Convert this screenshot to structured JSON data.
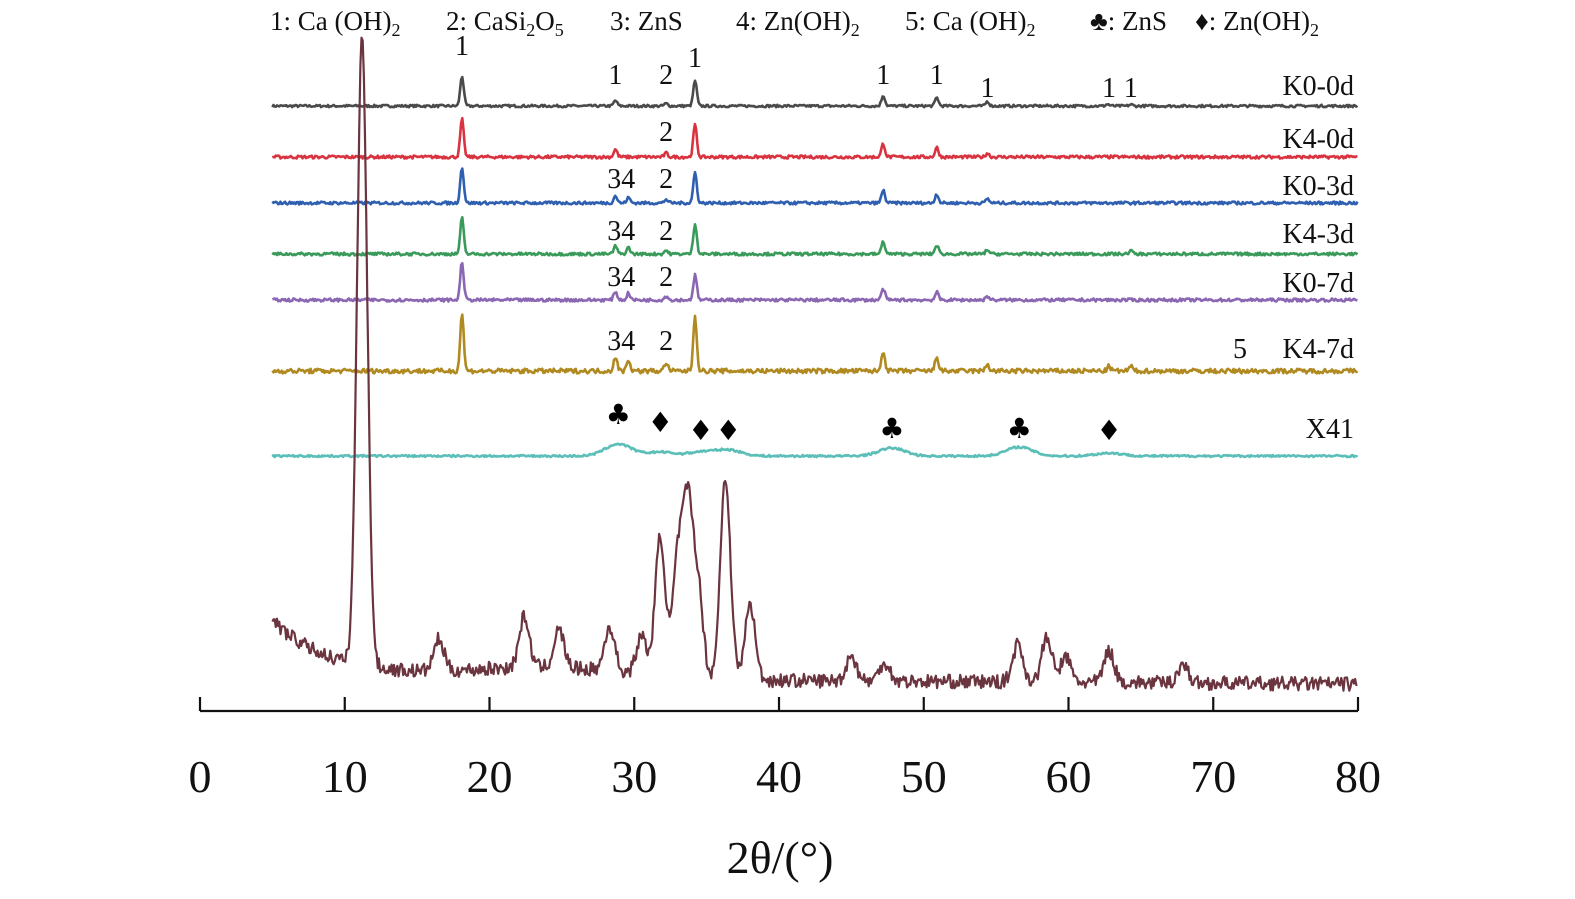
{
  "chart_data": {
    "type": "line",
    "xlabel": "2θ/(°)",
    "ylabel": "",
    "xlim": [
      0,
      80
    ],
    "x_ticks": [
      "0",
      "10",
      "20",
      "30",
      "40",
      "50",
      "60",
      "70",
      "80"
    ],
    "x_tick_values": [
      0,
      10,
      20,
      30,
      40,
      50,
      60,
      70,
      80
    ],
    "grid": false,
    "legend_items": [
      {
        "key": "1",
        "sep": ": ",
        "text": "Ca (OH)",
        "sub": "2"
      },
      {
        "key": "2",
        "sep": ": ",
        "text": "CaSi",
        "sub": "2",
        "text2": "O",
        "sub2": "5"
      },
      {
        "key": "3",
        "sep": ": ",
        "text": "ZnS"
      },
      {
        "key": "4",
        "sep": ": ",
        "text": "Zn(OH)",
        "sub": "2"
      },
      {
        "key": "5",
        "sep": ": ",
        "text": "Ca (OH)",
        "sub": "2"
      },
      {
        "key": "♣",
        "sep": ": ",
        "text": "ZnS"
      },
      {
        "key": "♦",
        "sep": ": ",
        "text": "Zn(OH)",
        "sub": "2"
      }
    ],
    "series": [
      {
        "name": "K0-0d",
        "color": "#4a4a4a",
        "peaks": [
          [
            18.1,
            1.0
          ],
          [
            28.7,
            0.18
          ],
          [
            32.2,
            0.08
          ],
          [
            34.2,
            0.85
          ],
          [
            47.2,
            0.35
          ],
          [
            50.9,
            0.28
          ],
          [
            54.4,
            0.15
          ],
          [
            62.7,
            0.06
          ],
          [
            64.3,
            0.05
          ]
        ],
        "annotations": [
          {
            "x": 18.1,
            "text": "1"
          },
          {
            "x": 28.7,
            "text": "1"
          },
          {
            "x": 32.2,
            "text": "2"
          },
          {
            "x": 34.2,
            "text": "1"
          },
          {
            "x": 47.2,
            "text": "1"
          },
          {
            "x": 50.9,
            "text": "1"
          },
          {
            "x": 54.4,
            "text": "1"
          },
          {
            "x": 62.8,
            "text": "1"
          },
          {
            "x": 64.3,
            "text": "1"
          }
        ]
      },
      {
        "name": "K4-0d",
        "color": "#d9333f",
        "peaks": [
          [
            18.1,
            1.0
          ],
          [
            28.7,
            0.2
          ],
          [
            32.2,
            0.1
          ],
          [
            34.2,
            0.85
          ],
          [
            47.2,
            0.35
          ],
          [
            50.9,
            0.25
          ],
          [
            54.4,
            0.1
          ]
        ],
        "annotations": [
          {
            "x": 32.2,
            "text": "2"
          }
        ]
      },
      {
        "name": "K0-3d",
        "color": "#2f5fb0",
        "peaks": [
          [
            18.1,
            1.0
          ],
          [
            28.7,
            0.2
          ],
          [
            29.6,
            0.15
          ],
          [
            32.2,
            0.1
          ],
          [
            34.2,
            0.85
          ],
          [
            47.2,
            0.35
          ],
          [
            50.9,
            0.25
          ],
          [
            54.4,
            0.12
          ]
        ],
        "annotations": [
          {
            "x": 29.1,
            "text": "34"
          },
          {
            "x": 32.2,
            "text": "2"
          }
        ]
      },
      {
        "name": "K4-3d",
        "color": "#3a9a5a",
        "peaks": [
          [
            18.1,
            1.0
          ],
          [
            28.7,
            0.22
          ],
          [
            29.6,
            0.18
          ],
          [
            32.2,
            0.1
          ],
          [
            34.2,
            0.85
          ],
          [
            47.2,
            0.35
          ],
          [
            50.9,
            0.25
          ],
          [
            54.4,
            0.12
          ],
          [
            64.3,
            0.1
          ]
        ],
        "annotations": [
          {
            "x": 29.1,
            "text": "34"
          },
          {
            "x": 32.2,
            "text": "2"
          }
        ]
      },
      {
        "name": "K0-7d",
        "color": "#8a66b3",
        "peaks": [
          [
            18.1,
            1.0
          ],
          [
            28.7,
            0.22
          ],
          [
            29.6,
            0.18
          ],
          [
            32.2,
            0.1
          ],
          [
            34.2,
            0.65
          ],
          [
            47.2,
            0.3
          ],
          [
            50.9,
            0.2
          ],
          [
            54.4,
            0.1
          ]
        ],
        "annotations": [
          {
            "x": 29.1,
            "text": "34"
          },
          {
            "x": 32.2,
            "text": "2"
          }
        ]
      },
      {
        "name": "K4-7d",
        "color": "#b08a20",
        "peaks": [
          [
            18.1,
            1.0
          ],
          [
            28.7,
            0.25
          ],
          [
            29.6,
            0.2
          ],
          [
            32.2,
            0.15
          ],
          [
            34.2,
            0.95
          ],
          [
            47.2,
            0.35
          ],
          [
            50.9,
            0.25
          ],
          [
            54.4,
            0.12
          ],
          [
            62.8,
            0.08
          ],
          [
            64.3,
            0.08
          ]
        ],
        "annotations": [
          {
            "x": 29.1,
            "text": "34"
          },
          {
            "x": 32.2,
            "text": "2"
          }
        ],
        "extra_mark": "5"
      },
      {
        "name": "X41",
        "color": "#5bbfb8",
        "peaks": [],
        "annotations": [
          {
            "x": 28.9,
            "text": "♣"
          },
          {
            "x": 31.8,
            "text": "♦"
          },
          {
            "x": 34.6,
            "text": "♦"
          },
          {
            "x": 36.5,
            "text": "♦"
          },
          {
            "x": 47.8,
            "text": "♣"
          },
          {
            "x": 56.6,
            "text": "♣"
          },
          {
            "x": 62.8,
            "text": "♦"
          }
        ]
      },
      {
        "name": "",
        "color": "#6b3540",
        "peaks": [
          [
            11.2,
            1.0
          ],
          [
            16.5,
            0.05
          ],
          [
            22.4,
            0.08
          ],
          [
            24.8,
            0.06
          ],
          [
            28.3,
            0.07
          ],
          [
            30.5,
            0.06
          ],
          [
            31.8,
            0.22
          ],
          [
            33.0,
            0.18
          ],
          [
            33.7,
            0.26
          ],
          [
            34.4,
            0.14
          ],
          [
            36.3,
            0.32
          ],
          [
            38.0,
            0.12
          ],
          [
            45.0,
            0.04
          ],
          [
            47.3,
            0.03
          ],
          [
            56.5,
            0.06
          ],
          [
            58.5,
            0.07
          ],
          [
            59.8,
            0.04
          ],
          [
            62.8,
            0.05
          ],
          [
            67.9,
            0.03
          ]
        ]
      }
    ]
  }
}
